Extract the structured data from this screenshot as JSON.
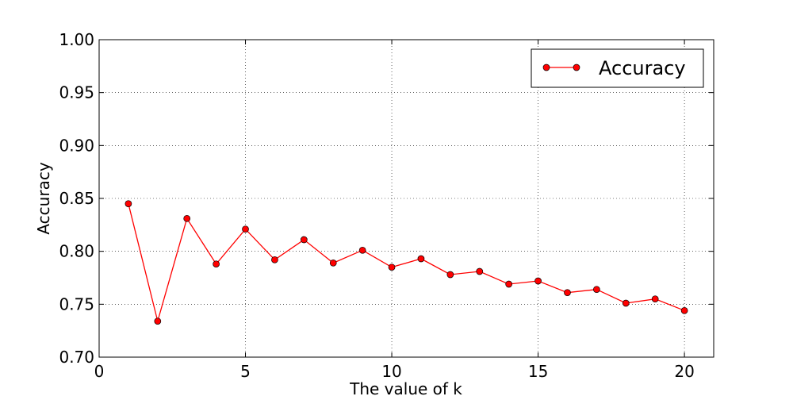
{
  "chart_data": {
    "type": "line",
    "xlabel": "The value of k",
    "ylabel": "Accuracy",
    "xlim": [
      0,
      21
    ],
    "ylim": [
      0.7,
      1.0
    ],
    "x_ticks": [
      0,
      5,
      10,
      15,
      20
    ],
    "x_tick_labels": [
      "0",
      "5",
      "10",
      "15",
      "20"
    ],
    "y_ticks": [
      0.7,
      0.75,
      0.8,
      0.85,
      0.9,
      0.95,
      1.0
    ],
    "y_tick_labels": [
      "0.70",
      "0.75",
      "0.80",
      "0.85",
      "0.90",
      "0.95",
      "1.00"
    ],
    "grid": true,
    "legend_position": "top-right",
    "series": [
      {
        "name": "Accuracy",
        "color": "#ff0000",
        "marker": "circle",
        "x": [
          1,
          2,
          3,
          4,
          5,
          6,
          7,
          8,
          9,
          10,
          11,
          12,
          13,
          14,
          15,
          16,
          17,
          18,
          19,
          20
        ],
        "y": [
          0.845,
          0.734,
          0.831,
          0.788,
          0.821,
          0.792,
          0.811,
          0.789,
          0.801,
          0.785,
          0.793,
          0.778,
          0.781,
          0.769,
          0.772,
          0.761,
          0.764,
          0.751,
          0.755,
          0.744
        ]
      }
    ]
  }
}
